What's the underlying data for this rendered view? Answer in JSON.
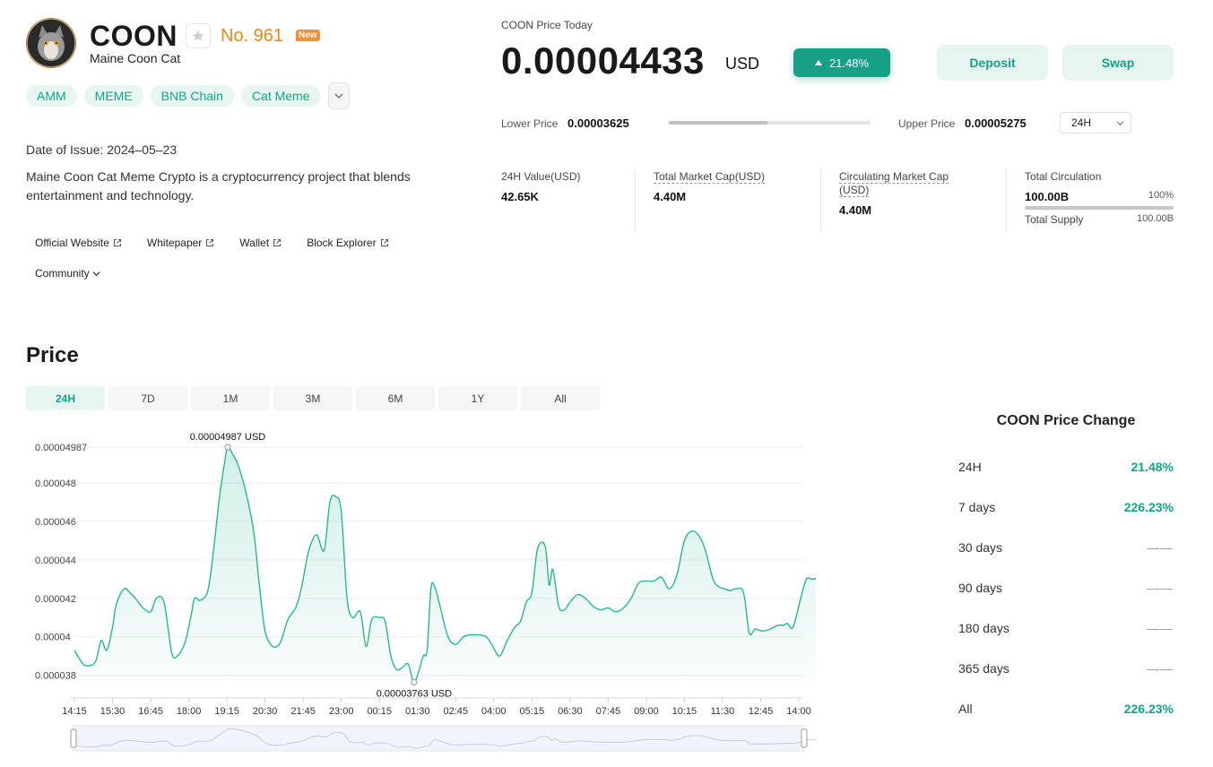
{
  "coin": {
    "symbol": "COON",
    "name": "Maine Coon Cat",
    "rank": "No. 961",
    "badge": "New",
    "tags": [
      "AMM",
      "MEME",
      "BNB Chain",
      "Cat Meme"
    ],
    "date_of_issue": "Date of Issue: 2024–05–23",
    "description": "Maine Coon Cat Meme Crypto is a cryptocurrency project that blends entertainment and technology.",
    "links": [
      "Official Website",
      "Whitepaper",
      "Wallet",
      "Block Explorer"
    ],
    "community": "Community"
  },
  "price": {
    "label": "COON Price Today",
    "value": "0.00004433",
    "unit": "USD",
    "change": "21.48%",
    "deposit": "Deposit",
    "swap": "Swap",
    "lower_label": "Lower Price",
    "lower_value": "0.00003625",
    "upper_label": "Upper Price",
    "upper_value": "0.00005275",
    "range_fraction": 0.49,
    "period": "24H"
  },
  "stats": {
    "value_label": "24H Value(USD)",
    "value": "42.65K",
    "mcap_label": "Total Market Cap(USD)",
    "mcap": "4.40M",
    "circ_mcap_label": "Circulating Market Cap (USD)",
    "circ_mcap": "4.40M",
    "circulation_label": "Total Circulation",
    "circulation": "100.00B",
    "circulation_pct": "100%",
    "supply_label": "Total Supply",
    "supply": "100.00B"
  },
  "chart_section": {
    "title": "Price",
    "tabs": [
      "24H",
      "7D",
      "1M",
      "3M",
      "6M",
      "1Y",
      "All"
    ],
    "active_tab": "24H"
  },
  "chart_data": {
    "type": "area",
    "y_ticks": [
      "0.000038",
      "0.00004",
      "0.000042",
      "0.000044",
      "0.000046",
      "0.000048",
      "0.00004987"
    ],
    "x_ticks": [
      "14:15",
      "15:30",
      "16:45",
      "18:00",
      "19:15",
      "20:30",
      "21:45",
      "23:00",
      "00:15",
      "01:30",
      "02:45",
      "04:00",
      "05:15",
      "06:30",
      "07:45",
      "09:00",
      "10:15",
      "11:30",
      "12:45",
      "14:00"
    ],
    "ylim": [
      3.77e-05,
      4.987e-05
    ],
    "max_label": "0.00004987  USD",
    "min_label": "0.00003763  USD",
    "max_point": [
      4.02,
      4.987e-05
    ],
    "min_point": [
      8.91,
      3.763e-05
    ],
    "x": [
      0,
      0.15,
      0.3,
      0.55,
      0.7,
      0.85,
      1.0,
      1.1,
      1.3,
      1.45,
      1.6,
      1.8,
      2.0,
      2.15,
      2.35,
      2.55,
      2.7,
      2.9,
      3.05,
      3.15,
      3.3,
      3.5,
      3.65,
      3.8,
      3.95,
      4.02,
      4.15,
      4.3,
      4.5,
      4.7,
      4.85,
      5.0,
      5.2,
      5.4,
      5.6,
      5.8,
      5.95,
      6.15,
      6.35,
      6.55,
      6.7,
      6.85,
      7.0,
      7.15,
      7.3,
      7.5,
      7.65,
      7.8,
      8.0,
      8.15,
      8.3,
      8.45,
      8.6,
      8.75,
      8.85,
      8.91,
      9.0,
      9.15,
      9.25,
      9.35,
      9.45,
      9.6,
      9.8,
      10.0,
      10.2,
      10.4,
      10.6,
      10.8,
      10.95,
      11.15,
      11.35,
      11.55,
      11.7,
      11.85,
      12.0,
      12.15,
      12.35,
      12.45,
      12.55,
      12.7,
      12.85,
      13.0,
      13.2,
      13.4,
      13.6,
      13.8,
      14.0,
      14.2,
      14.4,
      14.6,
      14.8,
      15.0,
      15.2,
      15.4,
      15.6,
      15.8,
      16.0,
      16.2,
      16.4,
      16.55,
      16.75,
      16.9,
      17.05,
      17.2,
      17.35,
      17.55,
      17.7,
      17.85,
      18.05,
      18.25,
      18.45,
      18.6,
      18.7,
      18.85,
      19.05,
      19.2,
      19.35,
      19.55,
      19.7,
      19.85
    ],
    "y": [
      3.93e-05,
      3.88e-05,
      3.85e-05,
      3.87e-05,
      3.98e-05,
      3.93e-05,
      4.05e-05,
      4.17e-05,
      4.25e-05,
      4.23e-05,
      4.2e-05,
      4.15e-05,
      4.13e-05,
      4.2e-05,
      4.18e-05,
      3.92e-05,
      3.9e-05,
      3.97e-05,
      4.1e-05,
      4.2e-05,
      4.19e-05,
      4.24e-05,
      4.45e-05,
      4.72e-05,
      4.92e-05,
      4.987e-05,
      4.95e-05,
      4.89e-05,
      4.75e-05,
      4.55e-05,
      4.27e-05,
      4.03e-05,
      3.95e-05,
      3.97e-05,
      4.09e-05,
      4.15e-05,
      4.25e-05,
      4.45e-05,
      4.53e-05,
      4.45e-05,
      4.7e-05,
      4.73e-05,
      4.65e-05,
      4.2e-05,
      4.1e-05,
      4.13e-05,
      3.95e-05,
      4.09e-05,
      4.1e-05,
      4.08e-05,
      3.9e-05,
      3.83e-05,
      3.84e-05,
      3.86e-05,
      3.79e-05,
      3.763e-05,
      3.8e-05,
      3.9e-05,
      3.93e-05,
      4.25e-05,
      4.26e-05,
      4.15e-05,
      4e-05,
      3.96e-05,
      4e-05,
      4.01e-05,
      4.01e-05,
      4e-05,
      3.96e-05,
      3.9e-05,
      3.98e-05,
      4.05e-05,
      4.08e-05,
      4.18e-05,
      4.23e-05,
      4.46e-05,
      4.47e-05,
      4.27e-05,
      4.35e-05,
      4.16e-05,
      4.14e-05,
      4.18e-05,
      4.22e-05,
      4.2e-05,
      4.16e-05,
      4.14e-05,
      4.15e-05,
      4.13e-05,
      4.15e-05,
      4.2e-05,
      4.28e-05,
      4.29e-05,
      4.29e-05,
      4.31e-05,
      4.25e-05,
      4.32e-05,
      4.5e-05,
      4.55e-05,
      4.52e-05,
      4.45e-05,
      4.3e-05,
      4.26e-05,
      4.25e-05,
      4.24e-05,
      4.25e-05,
      4.23e-05,
      4.02e-05,
      4.04e-05,
      4.03e-05,
      4.04e-05,
      4.06e-05,
      4.06e-05,
      4.07e-05,
      4.05e-05,
      4.2e-05,
      4.3e-05,
      4.3e-05,
      4.31e-05,
      4.33e-05,
      4.36e-05
    ]
  },
  "price_change": {
    "title": "COON Price Change",
    "rows": [
      {
        "label": "24H",
        "value": "21.48%"
      },
      {
        "label": "7 days",
        "value": "226.23%"
      },
      {
        "label": "30 days",
        "value": "——"
      },
      {
        "label": "90 days",
        "value": "——"
      },
      {
        "label": "180 days",
        "value": "——"
      },
      {
        "label": "365 days",
        "value": "——"
      },
      {
        "label": "All",
        "value": "226.23%"
      }
    ]
  },
  "colors": {
    "accent": "#16a085",
    "accent_text": "#13a487",
    "rank": "#e8891d",
    "line": "#2bb596"
  }
}
